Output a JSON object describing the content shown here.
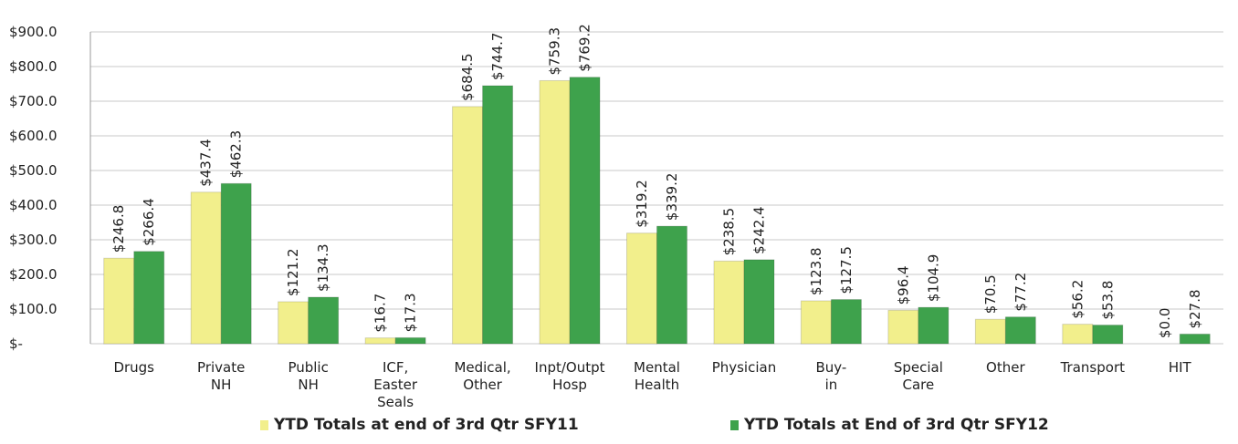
{
  "chart_data": {
    "type": "bar",
    "categories": [
      "Drugs",
      "Private NH",
      "Public NH",
      "ICF, Easter Seals",
      "Medical, Other",
      "Inpt/Outpt Hosp",
      "Mental Health",
      "Physician",
      "Buy-in",
      "Special Care",
      "Other",
      "Transport",
      "HIT"
    ],
    "series": [
      {
        "name": "YTD Totals at end of 3rd Qtr SFY11",
        "color": "#f2ef8c",
        "values": [
          246.8,
          437.4,
          121.2,
          16.7,
          684.5,
          759.3,
          319.2,
          238.5,
          123.8,
          96.4,
          70.5,
          56.2,
          0.0
        ],
        "value_labels": [
          "$246.8",
          "$437.4",
          "$121.2",
          "$16.7",
          "$684.5",
          "$759.3",
          "$319.2",
          "$238.5",
          "$123.8",
          "$96.4",
          "$70.5",
          "$56.2",
          "$0.0"
        ]
      },
      {
        "name": "YTD Totals at End of 3rd Qtr SFY12",
        "color": "#3ea24c",
        "values": [
          266.4,
          462.3,
          134.3,
          17.3,
          744.7,
          769.2,
          339.2,
          242.4,
          127.5,
          104.9,
          77.2,
          53.8,
          27.8
        ],
        "value_labels": [
          "$266.4",
          "$462.3",
          "$134.3",
          "$17.3",
          "$744.7",
          "$769.2",
          "$339.2",
          "$242.4",
          "$127.5",
          "$104.9",
          "$77.2",
          "$53.8",
          "$27.8"
        ]
      }
    ],
    "ylim": [
      0,
      900
    ],
    "yticks": [
      {
        "value": 0,
        "label": "$-"
      },
      {
        "value": 100,
        "label": "$100.0"
      },
      {
        "value": 200,
        "label": "$200.0"
      },
      {
        "value": 300,
        "label": "$300.0"
      },
      {
        "value": 400,
        "label": "$400.0"
      },
      {
        "value": 500,
        "label": "$500.0"
      },
      {
        "value": 600,
        "label": "$600.0"
      },
      {
        "value": 700,
        "label": "$700.0"
      },
      {
        "value": 800,
        "label": "$800.0"
      },
      {
        "value": 900,
        "label": "$900.0"
      }
    ],
    "grid": true,
    "legend": "bottom"
  }
}
